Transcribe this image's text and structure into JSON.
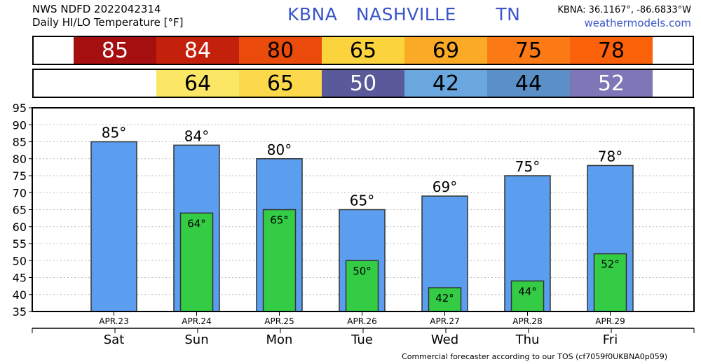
{
  "header": {
    "line1": "NWS NDFD 2022042314",
    "line2": "Daily HI/LO Temperature [°F]",
    "station_id": "KBNA",
    "city": "NASHVILLE",
    "state": "TN",
    "coords": "KBNA: 36.1167°, -86.6833°W",
    "site": "weathermodels.com"
  },
  "hi_strip": [
    {
      "value": "85",
      "color": "#a50f0f"
    },
    {
      "value": "84",
      "color": "#c4210d"
    },
    {
      "value": "80",
      "color": "#ea4a0a"
    },
    {
      "value": "65",
      "color": "#fbd33c"
    },
    {
      "value": "69",
      "color": "#fbaa25"
    },
    {
      "value": "75",
      "color": "#fb7a16"
    },
    {
      "value": "78",
      "color": "#fb6108"
    }
  ],
  "lo_strip": [
    {
      "value": "64",
      "color": "#fbe765"
    },
    {
      "value": "65",
      "color": "#fbd94b"
    },
    {
      "value": "50",
      "color": "#5a5a9a"
    },
    {
      "value": "42",
      "color": "#6aa7df"
    },
    {
      "value": "44",
      "color": "#5b8fc8"
    },
    {
      "value": "52",
      "color": "#7e76b6"
    }
  ],
  "chart_data": {
    "type": "bar",
    "categories": [
      "Sat",
      "Sun",
      "Mon",
      "Tue",
      "Wed",
      "Thu",
      "Fri"
    ],
    "dates": [
      "APR.23",
      "APR.24",
      "APR.25",
      "APR.26",
      "APR.27",
      "APR.28",
      "APR.29"
    ],
    "series": [
      {
        "values": [
          85,
          84,
          80,
          65,
          69,
          75,
          78
        ],
        "color": "#5b9ef0"
      },
      {
        "values": [
          null,
          64,
          65,
          50,
          42,
          44,
          52
        ],
        "color": "#33cc44"
      }
    ],
    "hi_labels": [
      "85°",
      "84°",
      "80°",
      "65°",
      "69°",
      "75°",
      "78°"
    ],
    "lo_labels": [
      "",
      "64°",
      "65°",
      "50°",
      "42°",
      "44°",
      "52°"
    ],
    "yticks": [
      "35",
      "40",
      "45",
      "50",
      "55",
      "60",
      "65",
      "70",
      "75",
      "80",
      "85",
      "90",
      "95"
    ],
    "ylim": [
      35,
      95
    ],
    "grid": true
  },
  "footer": "Commercial forecaster according to our TOS (cf7059f0UKBNA0p059)"
}
